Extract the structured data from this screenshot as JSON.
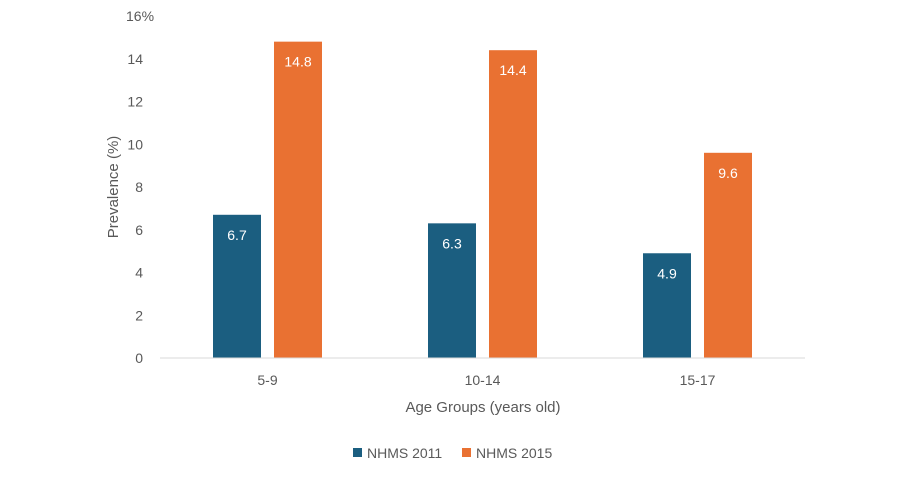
{
  "chart_data": {
    "type": "bar",
    "title": "",
    "xlabel": "Age Groups (years old)",
    "ylabel": "Prevalence (%)",
    "ylim": [
      0,
      16
    ],
    "yticks": [
      0,
      2,
      4,
      6,
      8,
      10,
      12,
      14,
      16
    ],
    "ytick_labels": [
      "0",
      "2",
      "4",
      "6",
      "8",
      "10",
      "12",
      "14",
      "16%"
    ],
    "categories": [
      "5-9",
      "10-14",
      "15-17"
    ],
    "series": [
      {
        "name": "NHMS 2011",
        "color": "#1b5e80",
        "values": [
          6.7,
          6.3,
          4.9
        ],
        "labels": [
          "6.7",
          "6.3",
          "4.9"
        ]
      },
      {
        "name": "NHMS 2015",
        "color": "#e97132",
        "values": [
          14.8,
          14.4,
          9.6
        ],
        "labels": [
          "14.8",
          "14.4",
          "9.6"
        ]
      }
    ],
    "grid": false,
    "legend": "bottom-center"
  }
}
